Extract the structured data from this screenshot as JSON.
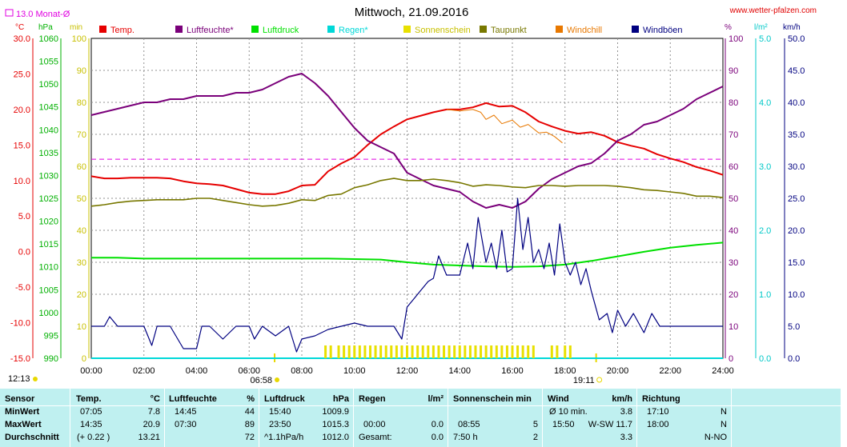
{
  "header": {
    "title": "Mittwoch, 21.09.2016",
    "site": "www.wetter-pfalzen.com",
    "monthly_avg_label": "13.0 Monat-Ø"
  },
  "colors": {
    "temp": "#e60000",
    "humidity": "#7a007a",
    "pressure": "#00e000",
    "rain": "#00d8d8",
    "sunshine": "#e8e000",
    "dewpoint": "#787800",
    "windchill": "#e87800",
    "gusts": "#000080",
    "monthly_avg": "#e000e0"
  },
  "chart_data": {
    "type": "line",
    "title": "Mittwoch, 21.09.2016",
    "x_axis": {
      "range_hours": [
        0,
        24
      ],
      "tick_labels": [
        "00:00",
        "02:00",
        "04:00",
        "06:00",
        "08:00",
        "10:00",
        "12:00",
        "14:00",
        "16:00",
        "18:00",
        "20:00",
        "22:00",
        "24:00"
      ],
      "sunrise": "06:58",
      "sunset": "19:11",
      "left_label": "12:13"
    },
    "y_axes": {
      "temp": {
        "unit": "°C",
        "range": [
          -15,
          30
        ],
        "ticks": [
          "30.0",
          "25.0",
          "20.0",
          "15.0",
          "10.0",
          "5.0",
          "0.0",
          "-5.0",
          "-10.0",
          "-15.0"
        ]
      },
      "pressure": {
        "unit": "hPa",
        "range": [
          990,
          1060
        ],
        "ticks": [
          "1060",
          "1055",
          "1050",
          "1045",
          "1040",
          "1035",
          "1030",
          "1025",
          "1020",
          "1015",
          "1010",
          "1005",
          "1000",
          "995",
          "990"
        ]
      },
      "minutes": {
        "unit": "min",
        "range": [
          0,
          100
        ],
        "ticks": [
          "100",
          "90",
          "80",
          "70",
          "60",
          "50",
          "40",
          "30",
          "20",
          "10",
          "0"
        ]
      },
      "humidity": {
        "unit": "%",
        "range": [
          0,
          100
        ],
        "ticks": [
          "100",
          "90",
          "80",
          "70",
          "60",
          "50",
          "40",
          "30",
          "20",
          "10",
          "0"
        ]
      },
      "rain": {
        "unit": "l/m²",
        "range": [
          0,
          5
        ],
        "ticks": [
          "5.0",
          "4.0",
          "3.0",
          "2.0",
          "1.0",
          "0.0"
        ]
      },
      "wind": {
        "unit": "km/h",
        "range": [
          0,
          50
        ],
        "ticks": [
          "50.0",
          "45.0",
          "40.0",
          "35.0",
          "30.0",
          "25.0",
          "20.0",
          "15.0",
          "10.0",
          "5.0",
          "0.0"
        ]
      }
    },
    "grid": true,
    "legend_position": "top",
    "legend": [
      "Temp.",
      "Luftfeuchte*",
      "Luftdruck",
      "Regen*",
      "Sonnenschein",
      "Taupunkt",
      "Windchill",
      "Windböen"
    ],
    "monthly_avg_temp": 13.0,
    "series": [
      {
        "name": "Temp.",
        "axis": "temp",
        "x": [
          0,
          0.5,
          1,
          1.5,
          2,
          2.5,
          3,
          3.5,
          4,
          4.5,
          5,
          5.5,
          6,
          6.5,
          7,
          7.5,
          8,
          8.5,
          9,
          9.5,
          10,
          10.5,
          11,
          11.5,
          12,
          12.5,
          13,
          13.5,
          14,
          14.5,
          15,
          15.5,
          16,
          16.5,
          17,
          17.5,
          18,
          18.5,
          19,
          19.5,
          20,
          20.5,
          21,
          21.5,
          22,
          22.5,
          23,
          23.5,
          24
        ],
        "y": [
          10.6,
          10.3,
          10.3,
          10.4,
          10.4,
          10.4,
          10.3,
          9.9,
          9.6,
          9.5,
          9.3,
          8.8,
          8.3,
          8.1,
          8.1,
          8.5,
          9.3,
          9.4,
          11.3,
          12.4,
          13.3,
          15.0,
          16.5,
          17.6,
          18.6,
          19.1,
          19.6,
          20.0,
          20.0,
          20.3,
          20.9,
          20.4,
          20.5,
          19.6,
          18.3,
          17.6,
          17.0,
          16.6,
          16.8,
          16.3,
          15.4,
          14.9,
          14.5,
          13.7,
          13.1,
          12.6,
          11.9,
          11.4,
          10.8
        ]
      },
      {
        "name": "Luftfeuchte*",
        "axis": "humidity",
        "x": [
          0,
          0.5,
          1,
          1.5,
          2,
          2.5,
          3,
          3.5,
          4,
          4.5,
          5,
          5.5,
          6,
          6.5,
          7,
          7.5,
          8,
          8.5,
          9,
          9.5,
          10,
          10.5,
          11,
          11.5,
          12,
          12.5,
          13,
          13.5,
          14,
          14.5,
          15,
          15.5,
          16,
          16.5,
          17,
          17.5,
          18,
          18.5,
          19,
          19.5,
          20,
          20.5,
          21,
          21.5,
          22,
          22.5,
          23,
          23.5,
          24
        ],
        "y": [
          76,
          77,
          78,
          79,
          80,
          80,
          81,
          81,
          82,
          82,
          82,
          83,
          83,
          84,
          86,
          88,
          89,
          86,
          82,
          77,
          72,
          68,
          66,
          64,
          58,
          56,
          54,
          53,
          52,
          49,
          47,
          48,
          47,
          49,
          53,
          56,
          58,
          60,
          61,
          64,
          68,
          70,
          73,
          74,
          76,
          78,
          81,
          83,
          85
        ]
      },
      {
        "name": "Luftdruck",
        "axis": "pressure",
        "x": [
          0,
          1,
          2,
          3,
          4,
          5,
          6,
          7,
          8,
          9,
          10,
          11,
          12,
          13,
          14,
          15,
          16,
          17,
          18,
          19,
          20,
          21,
          22,
          23,
          24
        ],
        "y": [
          1012.0,
          1012.0,
          1011.8,
          1011.8,
          1011.8,
          1011.8,
          1011.8,
          1011.8,
          1011.8,
          1011.8,
          1011.7,
          1011.6,
          1011.0,
          1010.5,
          1010.3,
          1010.1,
          1010.0,
          1010.1,
          1010.5,
          1011.3,
          1012.3,
          1013.3,
          1014.2,
          1014.8,
          1015.3
        ]
      },
      {
        "name": "Regen*",
        "axis": "rain",
        "x": [
          0,
          24
        ],
        "y": [
          0,
          0
        ]
      },
      {
        "name": "Sonnenschein",
        "axis": "minutes",
        "x": [
          8.9,
          9.1,
          9.4,
          9.6,
          9.8,
          10.0,
          10.2,
          10.4,
          10.6,
          10.8,
          11.0,
          11.2,
          11.4,
          11.6,
          11.8,
          12.0,
          12.2,
          12.4,
          12.6,
          12.8,
          13.0,
          13.2,
          13.4,
          13.6,
          13.8,
          14.0,
          14.2,
          14.4,
          14.6,
          14.8,
          15.0,
          15.2,
          15.4,
          15.6,
          15.8,
          16.0,
          16.2,
          16.4,
          16.6,
          16.8,
          17.5,
          17.7,
          18.0,
          18.2
        ],
        "y": [
          5,
          5,
          5,
          5,
          5,
          5,
          5,
          5,
          5,
          5,
          5,
          5,
          5,
          5,
          5,
          5,
          5,
          5,
          5,
          5,
          5,
          5,
          5,
          5,
          5,
          5,
          5,
          5,
          5,
          5,
          5,
          5,
          5,
          5,
          5,
          5,
          5,
          5,
          5,
          5,
          5,
          5,
          5,
          5
        ]
      },
      {
        "name": "Taupunkt",
        "axis": "temp",
        "x": [
          0,
          0.5,
          1,
          1.5,
          2,
          2.5,
          3,
          3.5,
          4,
          4.5,
          5,
          5.5,
          6,
          6.5,
          7,
          7.5,
          8,
          8.5,
          9,
          9.5,
          10,
          10.5,
          11,
          11.5,
          12,
          12.5,
          13,
          13.5,
          14,
          14.5,
          15,
          15.5,
          16,
          16.5,
          17,
          17.5,
          18,
          18.5,
          19,
          19.5,
          20,
          20.5,
          21,
          21.5,
          22,
          22.5,
          23,
          23.5,
          24
        ],
        "y": [
          6.4,
          6.6,
          6.9,
          7.1,
          7.2,
          7.3,
          7.3,
          7.3,
          7.5,
          7.5,
          7.2,
          6.9,
          6.6,
          6.4,
          6.5,
          6.8,
          7.3,
          7.2,
          7.9,
          8.1,
          9.0,
          9.4,
          10.0,
          10.3,
          10.0,
          10.0,
          10.2,
          10.0,
          9.7,
          9.2,
          9.4,
          9.3,
          9.1,
          9.0,
          9.3,
          9.3,
          9.2,
          9.3,
          9.3,
          9.3,
          9.2,
          9.0,
          8.7,
          8.6,
          8.4,
          8.2,
          7.8,
          7.8,
          7.6
        ]
      },
      {
        "name": "Windchill",
        "axis": "temp",
        "x": [
          13.5,
          14.0,
          14.5,
          14.8,
          15.0,
          15.3,
          15.6,
          16.0,
          16.3,
          16.6,
          17.0,
          17.3,
          17.6,
          17.9
        ],
        "y": [
          20.0,
          19.8,
          20.0,
          19.6,
          18.6,
          19.2,
          18.0,
          18.5,
          17.5,
          17.9,
          16.7,
          16.8,
          16.2,
          15.3
        ]
      },
      {
        "name": "Windböen",
        "axis": "wind",
        "x": [
          0,
          0.5,
          0.7,
          1,
          1.5,
          2,
          2.3,
          2.5,
          3,
          3.5,
          4,
          4.2,
          4.5,
          5,
          5.5,
          6,
          6.2,
          6.5,
          7,
          7.5,
          7.8,
          8,
          8.5,
          9,
          9.5,
          10,
          10.5,
          11,
          11.5,
          11.8,
          12,
          12.3,
          12.5,
          12.8,
          13,
          13.2,
          13.5,
          14,
          14.3,
          14.5,
          14.7,
          15,
          15.2,
          15.4,
          15.6,
          15.8,
          16,
          16.2,
          16.4,
          16.6,
          16.8,
          17,
          17.2,
          17.4,
          17.6,
          17.8,
          18,
          18.2,
          18.4,
          18.6,
          18.8,
          19,
          19.3,
          19.6,
          19.8,
          20,
          20.3,
          20.6,
          21,
          21.3,
          21.6,
          22,
          22.3,
          22.6,
          23,
          23.5,
          24
        ],
        "y": [
          5.0,
          5.0,
          6.5,
          5.0,
          5.0,
          5.0,
          2.0,
          5.0,
          5.0,
          1.5,
          1.5,
          5.0,
          5.0,
          3.0,
          5.0,
          5.0,
          3.0,
          5.0,
          3.5,
          5.0,
          1.0,
          3.0,
          3.5,
          4.5,
          5.0,
          5.5,
          5.0,
          5.0,
          5.0,
          3.0,
          8.0,
          9.5,
          10.5,
          12.0,
          12.5,
          16.0,
          13.0,
          13.0,
          18.0,
          14.0,
          22.0,
          15.0,
          18.0,
          14.0,
          20.0,
          13.5,
          14.0,
          25.0,
          17.0,
          22.0,
          15.0,
          17.0,
          14.0,
          18.0,
          13.0,
          21.0,
          15.0,
          13.0,
          15.0,
          11.5,
          14.0,
          10.5,
          6.0,
          7.0,
          4.0,
          7.5,
          5.0,
          7.0,
          4.0,
          7.0,
          5.0,
          5.0,
          5.0,
          5.0,
          5.0,
          5.0,
          5.0
        ]
      }
    ],
    "annotation": "--- 13.0 Monat-Ø"
  },
  "legend": [
    {
      "label": "Temp.",
      "color": "#e60000"
    },
    {
      "label": "Luftfeuchte*",
      "color": "#7a007a"
    },
    {
      "label": "Luftdruck",
      "color": "#00e000"
    },
    {
      "label": "Regen*",
      "color": "#00d8d8"
    },
    {
      "label": "Sonnenschein",
      "color": "#e8e000"
    },
    {
      "label": "Taupunkt",
      "color": "#787800"
    },
    {
      "label": "Windchill",
      "color": "#e87800"
    },
    {
      "label": "Windböen",
      "color": "#000080"
    }
  ],
  "table": {
    "headers": {
      "sensor": "Sensor",
      "temp": "Temp.",
      "temp_unit": "°C",
      "hum": "Luftfeuchte",
      "hum_unit": "%",
      "press": "Luftdruck",
      "press_unit": "hPa",
      "rain": "Regen",
      "rain_unit": "l/m²",
      "sun": "Sonnenschein min",
      "wind": "Wind",
      "wind_unit": "km/h",
      "dir": "Richtung"
    },
    "min": {
      "label": "MinWert",
      "temp_time": "07:05",
      "temp_val": "7.8",
      "hum_time": "14:45",
      "hum_val": "44",
      "press_time": "15:40",
      "press_val": "1009.9",
      "wind_time": "Ø 10 min.",
      "wind_val": "3.8",
      "dir_time": "17:10",
      "dir_val": "N"
    },
    "max": {
      "label": "MaxWert",
      "temp_time": "14:35",
      "temp_val": "20.9",
      "hum_time": "07:30",
      "hum_val": "89",
      "press_time": "23:50",
      "press_val": "1015.3",
      "rain_time": "00:00",
      "rain_val": "0.0",
      "sun_time": "08:55",
      "sun_val": "5",
      "wind_time": "15:50",
      "wind_val": "W-SW 11.7",
      "dir_time": "18:00",
      "dir_val": "N"
    },
    "avg": {
      "label": "Durchschnitt",
      "temp_time": "(+ 0.22 )",
      "temp_val": "13.21",
      "hum_val": "72",
      "press_time": "^1.1hPa/h",
      "press_val": "1012.0",
      "rain_time": "Gesamt:",
      "rain_val": "0.0",
      "sun_time": "7:50 h",
      "sun_val": "2",
      "wind_val": "3.3",
      "dir_val": "N-NO"
    }
  }
}
